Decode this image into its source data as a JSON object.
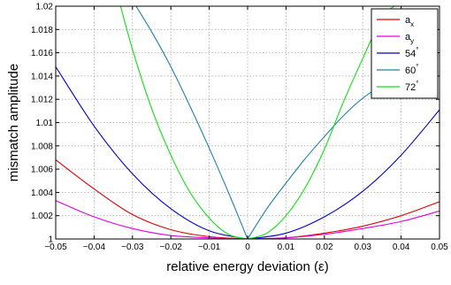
{
  "chart_data": {
    "type": "line",
    "xlabel": "relative energy deviation (ε)",
    "ylabel": "mismatch amplitude",
    "xlim": [
      -0.05,
      0.05
    ],
    "ylim": [
      1,
      1.02
    ],
    "grid": true,
    "legend_position": "top-right",
    "x_ticks": [
      -0.05,
      -0.04,
      -0.03,
      -0.02,
      -0.01,
      0,
      0.01,
      0.02,
      0.03,
      0.04,
      0.05
    ],
    "x_tick_labels": [
      "-0.05",
      "-0.04",
      "-0.03",
      "-0.02",
      "-0.01",
      "0",
      "0.01",
      "0.02",
      "0.03",
      "0.04",
      "0.05"
    ],
    "y_ticks": [
      1,
      1.002,
      1.004,
      1.006,
      1.008,
      1.01,
      1.012,
      1.014,
      1.016,
      1.018,
      1.02
    ],
    "y_tick_labels": [
      "1",
      "1.002",
      "1.004",
      "1.006",
      "1.008",
      "1.01",
      "1.012",
      "1.014",
      "1.016",
      "1.018",
      "1.02"
    ],
    "series": [
      {
        "name": "a",
        "name_sub": "x",
        "color": "#e00000",
        "x": [
          -0.05,
          -0.04,
          -0.03,
          -0.02,
          -0.01,
          0,
          0.01,
          0.02,
          0.03,
          0.04,
          0.05
        ],
        "y": [
          1.0068,
          1.0043,
          1.0021,
          1.0008,
          1.0002,
          1.0,
          1.0001,
          1.0005,
          1.0011,
          1.002,
          1.0032
        ]
      },
      {
        "name": "a",
        "name_sub": "y",
        "color": "#e000e0",
        "x": [
          -0.05,
          -0.04,
          -0.03,
          -0.02,
          -0.01,
          0,
          0.01,
          0.02,
          0.03,
          0.04,
          0.05
        ],
        "y": [
          1.0033,
          1.0019,
          1.0009,
          1.0003,
          1.0001,
          1.0,
          1.0001,
          1.0004,
          1.0009,
          1.0015,
          1.0024
        ]
      },
      {
        "name": "54",
        "name_sup": "°",
        "color": "#0000cc",
        "x": [
          -0.05,
          -0.04,
          -0.03,
          -0.02,
          -0.01,
          0,
          0.01,
          0.02,
          0.03,
          0.04,
          0.05
        ],
        "y": [
          1.0148,
          1.0097,
          1.0056,
          1.0026,
          1.0007,
          1.0,
          1.0005,
          1.0019,
          1.0041,
          1.0072,
          1.0111
        ]
      },
      {
        "name": "60",
        "name_sup": "°",
        "color": "#2080b0",
        "x": [
          -0.03,
          -0.025,
          -0.02,
          -0.015,
          -0.01,
          -0.005,
          0,
          0.005,
          0.01,
          0.015,
          0.02,
          0.025,
          0.03,
          0.035,
          0.04,
          0.045
        ],
        "y": [
          1.0205,
          1.0178,
          1.0148,
          1.0114,
          1.0078,
          1.004,
          1.0,
          1.0026,
          1.0048,
          1.0069,
          1.0088,
          1.0106,
          1.0121,
          1.0132,
          1.014,
          1.0142
        ]
      },
      {
        "name": "72",
        "name_sup": "°",
        "color": "#10e010",
        "x": [
          -0.0335,
          -0.03,
          -0.025,
          -0.02,
          -0.015,
          -0.01,
          -0.005,
          0,
          0.005,
          0.01,
          0.015,
          0.02,
          0.025,
          0.03,
          0.035,
          0.039,
          0.042
        ],
        "y": [
          1.0205,
          1.0163,
          1.0112,
          1.0072,
          1.004,
          1.0018,
          1.0004,
          1.0,
          1.0005,
          1.002,
          1.0044,
          1.0077,
          1.0118,
          1.0155,
          1.019,
          1.0202,
          1.0212
        ]
      }
    ]
  }
}
